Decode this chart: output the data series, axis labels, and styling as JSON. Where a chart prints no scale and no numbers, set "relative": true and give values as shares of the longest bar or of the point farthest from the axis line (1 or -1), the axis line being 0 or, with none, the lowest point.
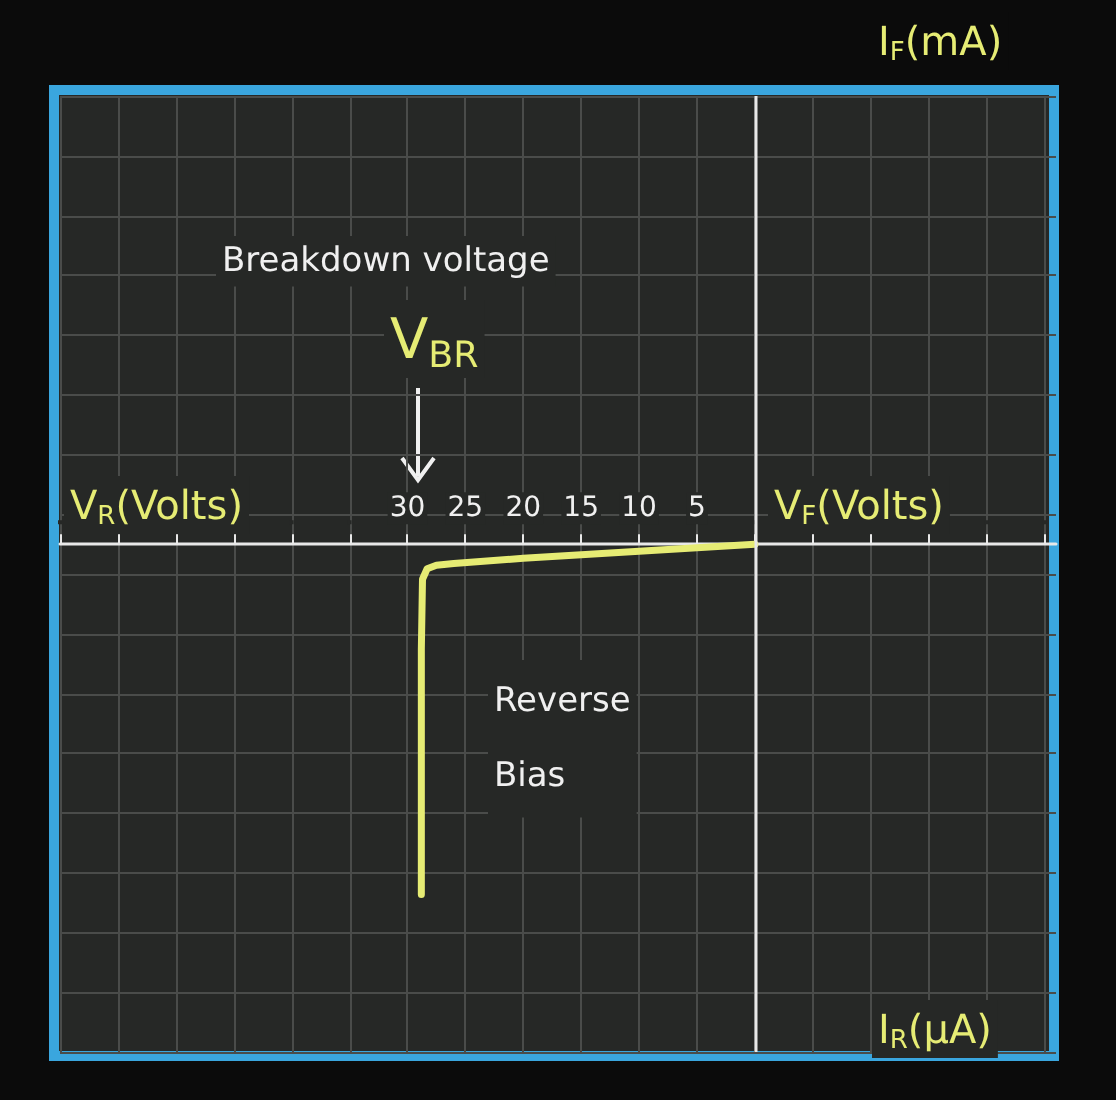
{
  "chart_data": {
    "type": "line",
    "relative": true,
    "xlabel": "V$_{F}$(Volts)",
    "annotations": [
      "V$_{R}$(Volts)",
      "I$_{R}$(μA)",
      "Breakdown voltage",
      "V$_{BR}$",
      "Reverse\nBias",
      "I$_{F}$(mA)"
    ],
    "x": [
      0,
      -10,
      -20,
      -26,
      -27.5,
      -28.3,
      -28.7,
      -28.8,
      -28.8
    ],
    "series": [
      {
        "color": "#e6ec74",
        "values": [
          0,
          -0.02,
          -0.04,
          -0.055,
          -0.06,
          -0.07,
          -0.1,
          -0.3,
          -1
        ]
      }
    ],
    "xlim": [
      -60,
      26
    ],
    "xticks": [
      {
        "value": -60,
        "label": null
      },
      {
        "value": -55,
        "label": null
      },
      {
        "value": -50,
        "label": null
      },
      {
        "value": -45,
        "label": null
      },
      {
        "value": -40,
        "label": null
      },
      {
        "value": -35,
        "label": null
      },
      {
        "value": -30,
        "label": "30"
      },
      {
        "value": -25,
        "label": "25"
      },
      {
        "value": -20,
        "label": "20"
      },
      {
        "value": -15,
        "label": "15"
      },
      {
        "value": -10,
        "label": "10"
      },
      {
        "value": -5,
        "label": "5"
      },
      {
        "value": 0,
        "label": null
      },
      {
        "value": 5,
        "label": null
      },
      {
        "value": 10,
        "label": null
      },
      {
        "value": 15,
        "label": null
      },
      {
        "value": 20,
        "label": null
      },
      {
        "value": 25,
        "label": null
      }
    ],
    "ref_lines": [
      {
        "axis": "x",
        "value": 0,
        "label": null,
        "color": "#e8e8e8"
      }
    ],
    "grid": true,
    "marker": "none",
    "line_style": "solid"
  }
}
